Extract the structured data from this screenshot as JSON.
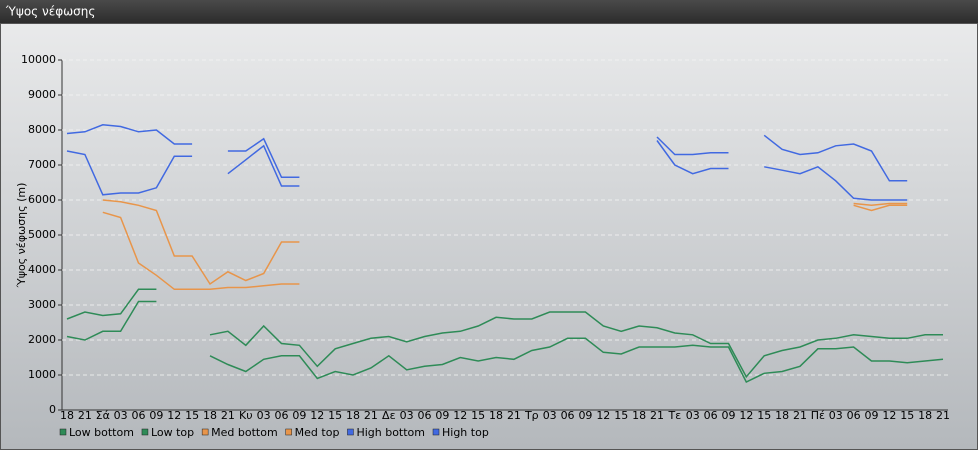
{
  "chart_data": {
    "type": "line",
    "title": "Ύψος νέφωσης",
    "y_label": "Ύψος νέφωσης (m)",
    "categories": [
      "18",
      "21",
      "Σά",
      "03",
      "06",
      "09",
      "12",
      "15",
      "18",
      "21",
      "Κυ",
      "03",
      "06",
      "09",
      "12",
      "15",
      "18",
      "21",
      "Δε",
      "03",
      "06",
      "09",
      "12",
      "15",
      "18",
      "21",
      "Τρ",
      "03",
      "06",
      "09",
      "12",
      "15",
      "18",
      "21",
      "Τε",
      "03",
      "06",
      "09",
      "12",
      "15",
      "18",
      "21",
      "Πέ",
      "03",
      "06",
      "09",
      "12",
      "15",
      "18",
      "21"
    ],
    "ylim": [
      0,
      10000
    ],
    "yticks": [
      0,
      1000,
      2000,
      3000,
      4000,
      5000,
      6000,
      7000,
      8000,
      9000,
      10000
    ],
    "grid": true,
    "series": [
      {
        "name": "Low bottom",
        "color": "#2e8b57",
        "values": [
          2100,
          2000,
          2250,
          2250,
          3100,
          3100,
          null,
          null,
          1550,
          1300,
          1100,
          1450,
          1550,
          1550,
          900,
          1100,
          1000,
          1200,
          1550,
          1150,
          1250,
          1300,
          1500,
          1400,
          1500,
          1450,
          1700,
          1800,
          2050,
          2050,
          1650,
          1600,
          1800,
          1800,
          1800,
          1850,
          1800,
          1800,
          800,
          1050,
          1100,
          1250,
          1750,
          1750,
          1800,
          1400,
          1400,
          1350,
          1400,
          1450
        ]
      },
      {
        "name": "Low top",
        "color": "#2e8b57",
        "values": [
          2600,
          2800,
          2700,
          2750,
          3450,
          3450,
          null,
          null,
          2150,
          2250,
          1850,
          2400,
          1900,
          1850,
          1250,
          1750,
          1900,
          2050,
          2100,
          1950,
          2100,
          2200,
          2250,
          2400,
          2650,
          2600,
          2600,
          2800,
          2800,
          2800,
          2400,
          2250,
          2400,
          2350,
          2200,
          2150,
          1900,
          1900,
          950,
          1550,
          1700,
          1800,
          2000,
          2050,
          2150,
          2100,
          2050,
          2050,
          2150,
          2150
        ]
      },
      {
        "name": "Med bottom",
        "color": "#e8954a",
        "values": [
          null,
          null,
          5650,
          5500,
          4200,
          3850,
          3450,
          3450,
          3450,
          3500,
          3500,
          3550,
          3600,
          3600,
          null,
          null,
          null,
          null,
          null,
          null,
          null,
          null,
          null,
          null,
          null,
          null,
          null,
          null,
          null,
          null,
          null,
          null,
          null,
          null,
          null,
          null,
          null,
          null,
          null,
          null,
          null,
          null,
          null,
          null,
          5850,
          5700,
          5850,
          5850,
          null,
          null
        ]
      },
      {
        "name": "Med top",
        "color": "#e8954a",
        "values": [
          null,
          null,
          6000,
          5950,
          5850,
          5700,
          4400,
          4400,
          3600,
          3950,
          3700,
          3900,
          4800,
          4800,
          null,
          null,
          null,
          null,
          null,
          null,
          null,
          null,
          null,
          null,
          null,
          null,
          null,
          null,
          null,
          null,
          null,
          null,
          null,
          null,
          null,
          null,
          null,
          null,
          null,
          null,
          null,
          null,
          null,
          null,
          5900,
          5850,
          5900,
          5900,
          null,
          null
        ]
      },
      {
        "name": "High bottom",
        "color": "#4169e1",
        "values": [
          7400,
          7300,
          6150,
          6200,
          6200,
          6350,
          7250,
          7250,
          null,
          6750,
          7150,
          7550,
          6400,
          6400,
          null,
          null,
          null,
          null,
          null,
          null,
          null,
          null,
          null,
          null,
          null,
          null,
          null,
          null,
          null,
          null,
          null,
          null,
          null,
          7700,
          7000,
          6750,
          6900,
          6900,
          null,
          6950,
          6850,
          6750,
          6950,
          6550,
          6050,
          6000,
          6000,
          6000,
          null,
          null
        ]
      },
      {
        "name": "High top",
        "color": "#4169e1",
        "values": [
          7900,
          7950,
          8150,
          8100,
          7950,
          8000,
          7600,
          7600,
          null,
          7400,
          7400,
          7750,
          6650,
          6650,
          null,
          null,
          null,
          null,
          null,
          null,
          null,
          null,
          null,
          null,
          null,
          null,
          null,
          null,
          null,
          null,
          null,
          null,
          null,
          7800,
          7300,
          7300,
          7350,
          7350,
          null,
          7850,
          7450,
          7300,
          7350,
          7550,
          7600,
          7400,
          6550,
          6550,
          null,
          null
        ]
      }
    ]
  }
}
